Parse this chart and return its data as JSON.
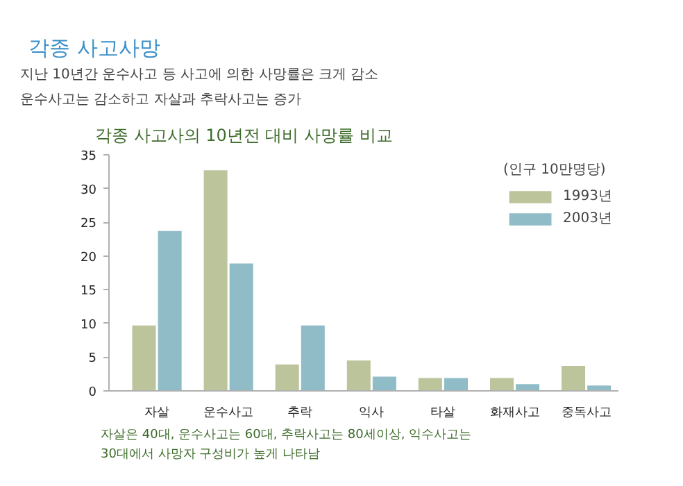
{
  "chart_data": {
    "type": "bar",
    "title": "각종 사고사망",
    "subtitle": "각종 사고사의 10년전 대비 사망률 비교",
    "annotations": [
      "지난 10년간 운수사고 등 사고에 의한 사망률은 크게 감소",
      "운수사고는 감소하고 자살과 추락사고는 증가",
      "자살은 40대, 운수사고는 60대, 추락사고는 80세이상, 익수사고는",
      "30대에서 사망자 구성비가 높게 나타남"
    ],
    "legend_title": "(인구 10만명당)",
    "legend": "top right",
    "categories": [
      "자살",
      "운수사고",
      "추락",
      "익사",
      "타살",
      "화재사고",
      "중독사고"
    ],
    "series": [
      {
        "name": "1993년",
        "color": "#bcc49c",
        "values": [
          9.7,
          32.7,
          3.9,
          4.5,
          1.9,
          1.9,
          3.7
        ]
      },
      {
        "name": "2003년",
        "color": "#8fbcc6",
        "values": [
          23.7,
          18.9,
          9.7,
          2.1,
          1.9,
          1.0,
          0.8
        ]
      }
    ],
    "ylim": [
      0,
      35
    ],
    "yticks": [
      0,
      5,
      10,
      15,
      20,
      25,
      30,
      35
    ],
    "grid": false
  }
}
